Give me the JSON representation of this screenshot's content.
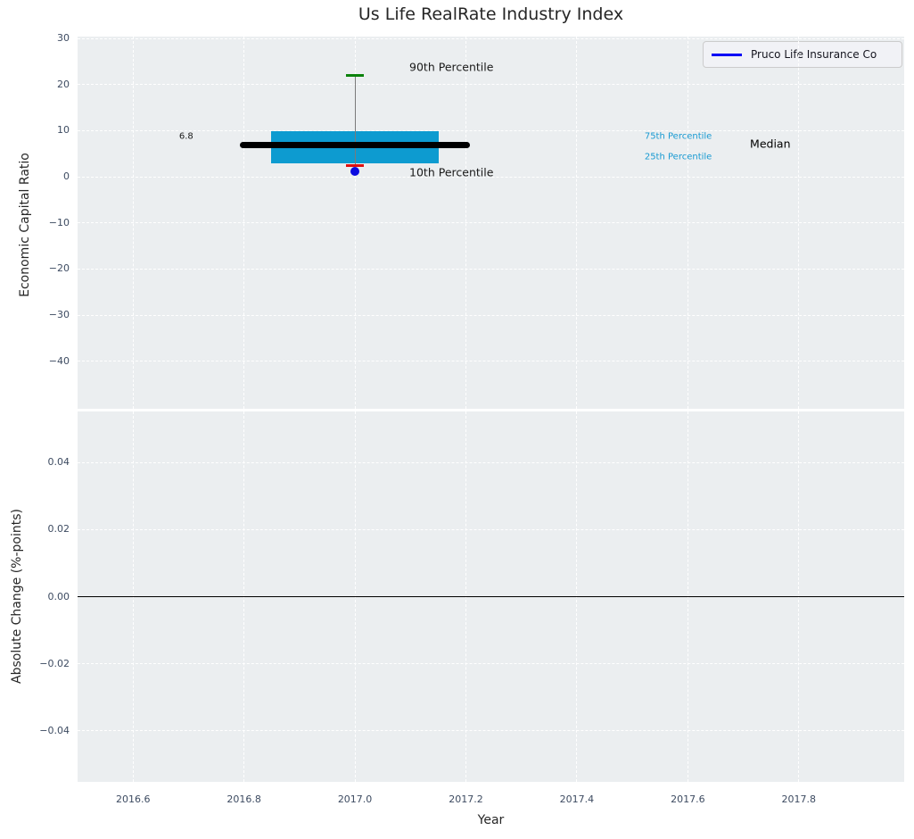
{
  "title": "Us Life RealRate Industry Index",
  "legend": {
    "label": "Pruco Life Insurance Co",
    "line_color": "#0000f5"
  },
  "colors": {
    "plot_bg": "#ebeef0",
    "grid": "#ffffff",
    "tick_text": "#3d4b61",
    "title_text": "#262626"
  },
  "chart_data": [
    {
      "type": "boxplot",
      "title": "Us Life RealRate Industry Index",
      "ylabel": "Economic Capital Ratio",
      "xlim": [
        2016.5,
        2017.99
      ],
      "ylim": [
        -50.3,
        30.4
      ],
      "grid": "white dashed, on",
      "legend_position": "upper right",
      "xticks": [
        {
          "v": 2016.6,
          "label": "2016.6"
        },
        {
          "v": 2016.8,
          "label": "2016.8"
        },
        {
          "v": 2017.0,
          "label": "2017.0"
        },
        {
          "v": 2017.2,
          "label": "2017.2"
        },
        {
          "v": 2017.4,
          "label": "2017.4"
        },
        {
          "v": 2017.6,
          "label": "2017.6"
        },
        {
          "v": 2017.8,
          "label": "2017.8"
        }
      ],
      "yticks": [
        {
          "v": 30,
          "label": "30"
        },
        {
          "v": 20,
          "label": "20"
        },
        {
          "v": 10,
          "label": "10"
        },
        {
          "v": 0,
          "label": "0"
        },
        {
          "v": -10,
          "label": "−10"
        },
        {
          "v": -20,
          "label": "−20"
        },
        {
          "v": -30,
          "label": "−30"
        },
        {
          "v": -40,
          "label": "−40"
        }
      ],
      "box": {
        "x": 2017.0,
        "p90": 22.0,
        "p75": 9.8,
        "median": 6.8,
        "p25": 2.9,
        "p10": 2.4,
        "company_value": 1.2,
        "box_half_width": 0.151,
        "median_half_width": 0.207,
        "cap_half_width": 0.016,
        "colors": {
          "box": "#0d9bd0",
          "median": "#000000",
          "p90_cap": "#0c820c",
          "p10_cap": "#dd1111",
          "whisker": "#7a7a7a",
          "company": "#0b0be0"
        }
      },
      "annotations": [
        {
          "text": "6.8",
          "x": 2016.683,
          "y": 8.7,
          "size": 10,
          "color": "#1a1a1a"
        },
        {
          "text": "90th Percentile",
          "x": 2017.098,
          "y": 23.8,
          "size": 12.5,
          "color": "#1a1a1a"
        },
        {
          "text": "10th Percentile",
          "x": 2017.098,
          "y": 1.0,
          "size": 12.5,
          "color": "#1a1a1a"
        },
        {
          "text": "75th Percentile",
          "x": 2017.522,
          "y": 8.7,
          "size": 10,
          "color": "#189ad2"
        },
        {
          "text": "25th Percentile",
          "x": 2017.522,
          "y": 4.3,
          "size": 10,
          "color": "#189ad2"
        },
        {
          "text": "Median",
          "x": 2017.712,
          "y": 7.2,
          "size": 12.5,
          "color": "#000000"
        }
      ]
    },
    {
      "type": "line",
      "ylabel": "Absolute Change (%-points)",
      "xlabel": "Year",
      "xlim": [
        2016.5,
        2017.99
      ],
      "ylim": [
        -0.0553,
        0.0553
      ],
      "grid": "white dashed, on",
      "xticks": [
        {
          "v": 2016.6,
          "label": "2016.6"
        },
        {
          "v": 2016.8,
          "label": "2016.8"
        },
        {
          "v": 2017.0,
          "label": "2017.0"
        },
        {
          "v": 2017.2,
          "label": "2017.2"
        },
        {
          "v": 2017.4,
          "label": "2017.4"
        },
        {
          "v": 2017.6,
          "label": "2017.6"
        },
        {
          "v": 2017.8,
          "label": "2017.8"
        }
      ],
      "yticks": [
        {
          "v": 0.04,
          "label": "0.04"
        },
        {
          "v": 0.02,
          "label": "0.02"
        },
        {
          "v": 0,
          "label": "0.00"
        },
        {
          "v": -0.02,
          "label": "−0.02"
        },
        {
          "v": -0.04,
          "label": "−0.04"
        }
      ],
      "hline": {
        "y": 0,
        "color": "#000000"
      },
      "series": []
    }
  ]
}
